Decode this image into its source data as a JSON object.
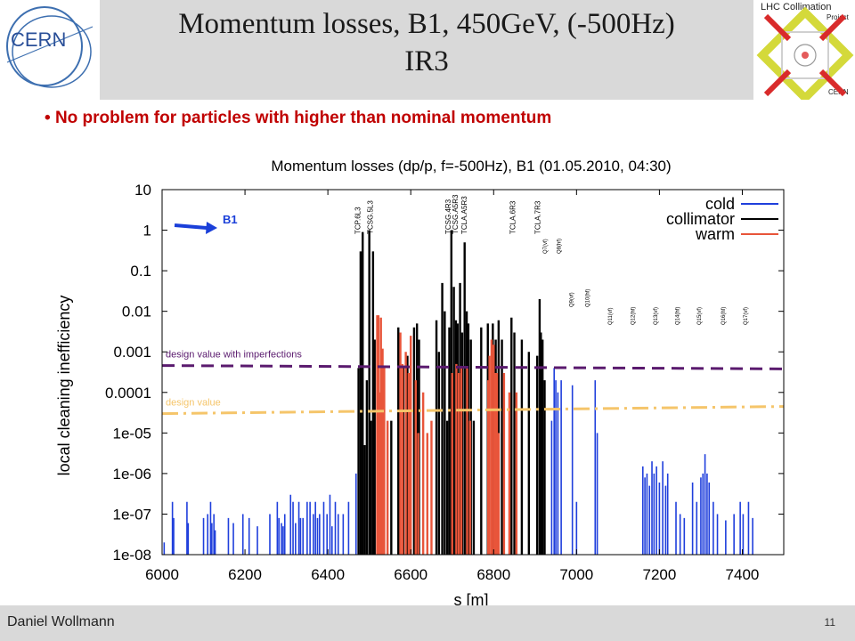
{
  "slide": {
    "title_line1": "Momentum losses, B1, 450GeV, (-500Hz)",
    "title_line2": "IR3",
    "bullet": "No problem for particles with higher than nominal momentum",
    "author": "Daniel Wollmann",
    "page_number": "11",
    "cern_logo_text": "CERN",
    "lhc_logo": {
      "line1": "LHC Collimation",
      "line2": "Project",
      "line3": "CERN"
    }
  },
  "chart_data": {
    "type": "bar",
    "title": "Momentum losses (dp/p, f=-500Hz), B1 (01.05.2010, 04:30)",
    "xlabel": "s [m]",
    "ylabel": "local cleaning inefficiency",
    "xlim": [
      6000,
      7500
    ],
    "ylim": [
      1e-08,
      10
    ],
    "yscale": "log",
    "x_ticks": [
      "6000",
      "6200",
      "6400",
      "6600",
      "6800",
      "7000",
      "7200",
      "7400"
    ],
    "y_ticks": [
      "10",
      "1",
      "0.1",
      "0.01",
      "0.001",
      "0.0001",
      "1e-05",
      "1e-06",
      "1e-07",
      "1e-08"
    ],
    "legend": {
      "position": "top-right",
      "entries": [
        {
          "name": "cold",
          "color": "#1f3fdc"
        },
        {
          "name": "collimator",
          "color": "#000000"
        },
        {
          "name": "warm",
          "color": "#e8553a"
        }
      ]
    },
    "beam_label": "B1",
    "element_labels": [
      {
        "text": "TCP.6L3",
        "x": 6478
      },
      {
        "text": "TCSG.5L3",
        "x": 6508
      },
      {
        "text": "TCSG.4R3",
        "x": 6696
      },
      {
        "text": "TCSG.A5R3",
        "x": 6713
      },
      {
        "text": "TCLA.A5R3",
        "x": 6735
      },
      {
        "text": "TCLA.6R3",
        "x": 6852
      },
      {
        "text": "TCLA.7R3",
        "x": 6912
      },
      {
        "text": "Q7(vf)",
        "x": 6928
      },
      {
        "text": "Q8(hf)",
        "x": 6962
      },
      {
        "text": "Q9(vf)",
        "x": 6992
      },
      {
        "text": "Q10(hf)",
        "x": 7030
      },
      {
        "text": "Q11(vf)",
        "x": 7085
      },
      {
        "text": "Q12(hf)",
        "x": 7140
      },
      {
        "text": "Q13(vf)",
        "x": 7195
      },
      {
        "text": "Q14(hf)",
        "x": 7248
      },
      {
        "text": "Q15(vf)",
        "x": 7300
      },
      {
        "text": "Q16(hf)",
        "x": 7358
      },
      {
        "text": "Q17(vf)",
        "x": 7412
      }
    ],
    "reference_lines": [
      {
        "name": "design value with imperfections",
        "color": "#5a1a6e",
        "style": "dashed",
        "y_start": 0.00046,
        "y_end": 0.00038
      },
      {
        "name": "design value",
        "color": "#f5c56a",
        "style": "dashdot",
        "y_start": 3e-05,
        "y_end": 4.5e-05
      }
    ],
    "series": [
      {
        "name": "collimator",
        "color": "#000000",
        "points": [
          [
            6474,
            0.0004
          ],
          [
            6479,
            0.3
          ],
          [
            6484,
            0.9
          ],
          [
            6489,
            5e-06
          ],
          [
            6494,
            0.0002
          ],
          [
            6500,
            1.0
          ],
          [
            6504,
            2e-05
          ],
          [
            6509,
            0.3
          ],
          [
            6513,
            0.002
          ],
          [
            6553,
            2e-05
          ],
          [
            6570,
            0.004
          ],
          [
            6582,
            0.0004
          ],
          [
            6592,
            0.0008
          ],
          [
            6608,
            0.004
          ],
          [
            6615,
            0.005
          ],
          [
            6620,
            0.002
          ],
          [
            6662,
            0.006
          ],
          [
            6668,
            0.001
          ],
          [
            6676,
            0.05
          ],
          [
            6682,
            0.01
          ],
          [
            6688,
            2e-05
          ],
          [
            6693,
            0.004
          ],
          [
            6698,
            1.0
          ],
          [
            6704,
            0.04
          ],
          [
            6709,
            0.006
          ],
          [
            6713,
            0.005
          ],
          [
            6719,
            0.05
          ],
          [
            6724,
            0.003
          ],
          [
            6730,
            0.5
          ],
          [
            6735,
            0.01
          ],
          [
            6739,
            0.005
          ],
          [
            6745,
            0.002
          ],
          [
            6752,
            2e-05
          ],
          [
            6770,
            0.004
          ],
          [
            6786,
            0.005
          ],
          [
            6798,
            0.005
          ],
          [
            6805,
            0.002
          ],
          [
            6812,
            0.006
          ],
          [
            6820,
            0.002
          ],
          [
            6843,
            0.007
          ],
          [
            6850,
            0.003
          ],
          [
            6868,
            0.002
          ],
          [
            6885,
            0.001
          ],
          [
            6905,
            0.0008
          ],
          [
            6911,
            0.02
          ],
          [
            6914,
            0.003
          ],
          [
            6918,
            0.002
          ],
          [
            6923,
            0.0002
          ]
        ]
      },
      {
        "name": "warm",
        "color": "#e8553a",
        "points": [
          [
            6519,
            0.008
          ],
          [
            6522,
            0.008
          ],
          [
            6525,
            0.0001
          ],
          [
            6528,
            0.007
          ],
          [
            6532,
            0.0012
          ],
          [
            6536,
            0.0004
          ],
          [
            6544,
            2e-05
          ],
          [
            6575,
            0.003
          ],
          [
            6580,
            0.0005
          ],
          [
            6588,
            0.001
          ],
          [
            6595,
            0.0003
          ],
          [
            6600,
            0.0025
          ],
          [
            6612,
            0.0002
          ],
          [
            6618,
            1e-05
          ],
          [
            6630,
            0.0001
          ],
          [
            6640,
            1e-05
          ],
          [
            6650,
            2e-05
          ],
          [
            6700,
            0.0003
          ],
          [
            6710,
            0.0005
          ],
          [
            6716,
            0.0003
          ],
          [
            6722,
            0.0004
          ],
          [
            6736,
            0.0004
          ],
          [
            6743,
            2e-05
          ],
          [
            6787,
            0.0002
          ],
          [
            6790,
            0.0008
          ],
          [
            6795,
            0.002
          ],
          [
            6800,
            0.0015
          ],
          [
            6804,
            0.0003
          ],
          [
            6808,
            0.0003
          ],
          [
            6812,
            1e-05
          ],
          [
            6825,
            0.0003
          ],
          [
            6838,
            0.0001
          ],
          [
            6855,
            0.0001
          ]
        ]
      },
      {
        "name": "cold",
        "color": "#1f3fdc",
        "points": [
          [
            6005,
            2e-08
          ],
          [
            6010,
            1e-08
          ],
          [
            6025,
            2e-07
          ],
          [
            6028,
            8e-08
          ],
          [
            6060,
            2e-07
          ],
          [
            6063,
            6e-08
          ],
          [
            6100,
            8e-08
          ],
          [
            6110,
            1e-07
          ],
          [
            6117,
            2e-07
          ],
          [
            6120,
            6e-08
          ],
          [
            6125,
            1e-07
          ],
          [
            6128,
            4e-08
          ],
          [
            6160,
            8e-08
          ],
          [
            6172,
            6e-08
          ],
          [
            6195,
            1e-07
          ],
          [
            6210,
            8e-08
          ],
          [
            6230,
            5e-08
          ],
          [
            6260,
            1e-07
          ],
          [
            6278,
            2e-07
          ],
          [
            6282,
            8e-08
          ],
          [
            6288,
            6e-08
          ],
          [
            6292,
            5e-08
          ],
          [
            6296,
            1e-07
          ],
          [
            6310,
            3e-07
          ],
          [
            6316,
            2e-07
          ],
          [
            6322,
            6e-08
          ],
          [
            6330,
            2e-07
          ],
          [
            6334,
            8e-08
          ],
          [
            6340,
            8e-08
          ],
          [
            6350,
            2e-07
          ],
          [
            6357,
            2e-07
          ],
          [
            6365,
            1e-07
          ],
          [
            6370,
            2e-07
          ],
          [
            6375,
            8e-08
          ],
          [
            6380,
            1e-07
          ],
          [
            6390,
            2e-07
          ],
          [
            6398,
            1e-07
          ],
          [
            6405,
            3e-07
          ],
          [
            6410,
            5e-08
          ],
          [
            6418,
            2e-07
          ],
          [
            6425,
            1e-07
          ],
          [
            6437,
            1e-07
          ],
          [
            6450,
            2e-07
          ],
          [
            6468,
            1e-06
          ],
          [
            6940,
            2e-05
          ],
          [
            6946,
            0.0004
          ],
          [
            6950,
            0.0002
          ],
          [
            6955,
            0.0001
          ],
          [
            6963,
            0.0002
          ],
          [
            6990,
            0.00015
          ],
          [
            7000,
            2e-07
          ],
          [
            7045,
            0.0002
          ],
          [
            7050,
            1e-05
          ],
          [
            7160,
            1.5e-06
          ],
          [
            7165,
            8e-07
          ],
          [
            7170,
            1e-06
          ],
          [
            7176,
            5e-07
          ],
          [
            7182,
            2e-06
          ],
          [
            7187,
            1e-06
          ],
          [
            7193,
            1.5e-06
          ],
          [
            7200,
            6e-07
          ],
          [
            7208,
            2e-06
          ],
          [
            7215,
            5e-07
          ],
          [
            7220,
            1e-06
          ],
          [
            7240,
            2e-07
          ],
          [
            7250,
            1e-07
          ],
          [
            7260,
            8e-08
          ],
          [
            7280,
            6e-07
          ],
          [
            7290,
            2e-07
          ],
          [
            7300,
            8e-07
          ],
          [
            7305,
            1e-06
          ],
          [
            7310,
            3e-06
          ],
          [
            7315,
            1e-06
          ],
          [
            7320,
            6e-07
          ],
          [
            7330,
            2e-07
          ],
          [
            7340,
            1e-07
          ],
          [
            7360,
            7e-08
          ],
          [
            7380,
            1e-07
          ],
          [
            7395,
            2e-07
          ],
          [
            7402,
            1e-07
          ],
          [
            7415,
            2e-07
          ],
          [
            7425,
            8e-08
          ]
        ]
      }
    ]
  }
}
